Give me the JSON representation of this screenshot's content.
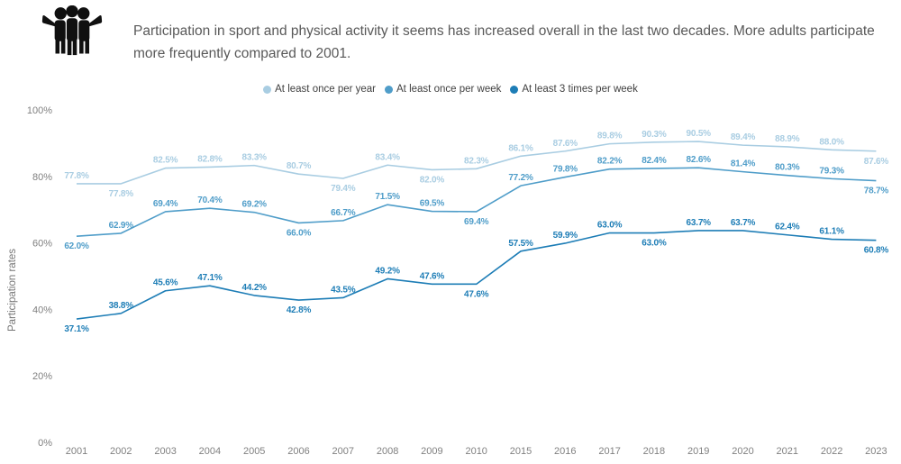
{
  "header": {
    "icon": "people-group-icon",
    "title": "Participation in sport and physical activity it seems has increased overall in the last two decades. More adults participate more frequently compared to 2001."
  },
  "chart_data": {
    "type": "line",
    "title": "Participation in sport and physical activity it seems has increased overall in the last two decades. More adults participate more frequently compared to 2001.",
    "xlabel": "",
    "ylabel": "Participation rates",
    "ylim": [
      0,
      100
    ],
    "grid": false,
    "legend_position": "top-center",
    "yticks": [
      "0%",
      "20%",
      "40%",
      "60%",
      "80%",
      "100%"
    ],
    "categories": [
      "2001",
      "2002",
      "2003",
      "2004",
      "2005",
      "2006",
      "2007",
      "2008",
      "2009",
      "2010",
      "2015",
      "2016",
      "2017",
      "2018",
      "2019",
      "2020",
      "2021",
      "2022",
      "2023"
    ],
    "series": [
      {
        "name": "At least once per year",
        "color": "#a9cde2",
        "values": [
          77.8,
          77.8,
          82.5,
          82.8,
          83.3,
          80.7,
          79.4,
          83.4,
          82.0,
          82.3,
          86.1,
          87.6,
          89.8,
          90.3,
          90.5,
          89.4,
          88.9,
          88.0,
          87.6
        ],
        "label_positions": [
          "a",
          "b",
          "a",
          "a",
          "a",
          "a",
          "b",
          "a",
          "b",
          "a",
          "a",
          "a",
          "a",
          "a",
          "a",
          "a",
          "a",
          "a",
          "b"
        ]
      },
      {
        "name": "At least once per week",
        "color": "#4f9dc9",
        "values": [
          62.0,
          62.9,
          69.4,
          70.4,
          69.2,
          66.0,
          66.7,
          71.5,
          69.5,
          69.4,
          77.2,
          79.8,
          82.2,
          82.4,
          82.6,
          81.4,
          80.3,
          79.3,
          78.7
        ],
        "label_positions": [
          "b",
          "a",
          "a",
          "a",
          "a",
          "b",
          "a",
          "a",
          "a",
          "b",
          "a",
          "a",
          "a",
          "a",
          "a",
          "a",
          "a",
          "a",
          "b"
        ]
      },
      {
        "name": "At least 3 times per week",
        "color": "#1d7db6",
        "values": [
          37.1,
          38.8,
          45.6,
          47.1,
          44.2,
          42.8,
          43.5,
          49.2,
          47.6,
          47.6,
          57.5,
          59.9,
          63.0,
          63.0,
          63.7,
          63.7,
          62.4,
          61.1,
          60.8
        ],
        "label_positions": [
          "b",
          "a",
          "a",
          "a",
          "a",
          "b",
          "a",
          "a",
          "a",
          "b",
          "a",
          "a",
          "a",
          "b",
          "a",
          "a",
          "a",
          "a",
          "b"
        ]
      }
    ]
  }
}
